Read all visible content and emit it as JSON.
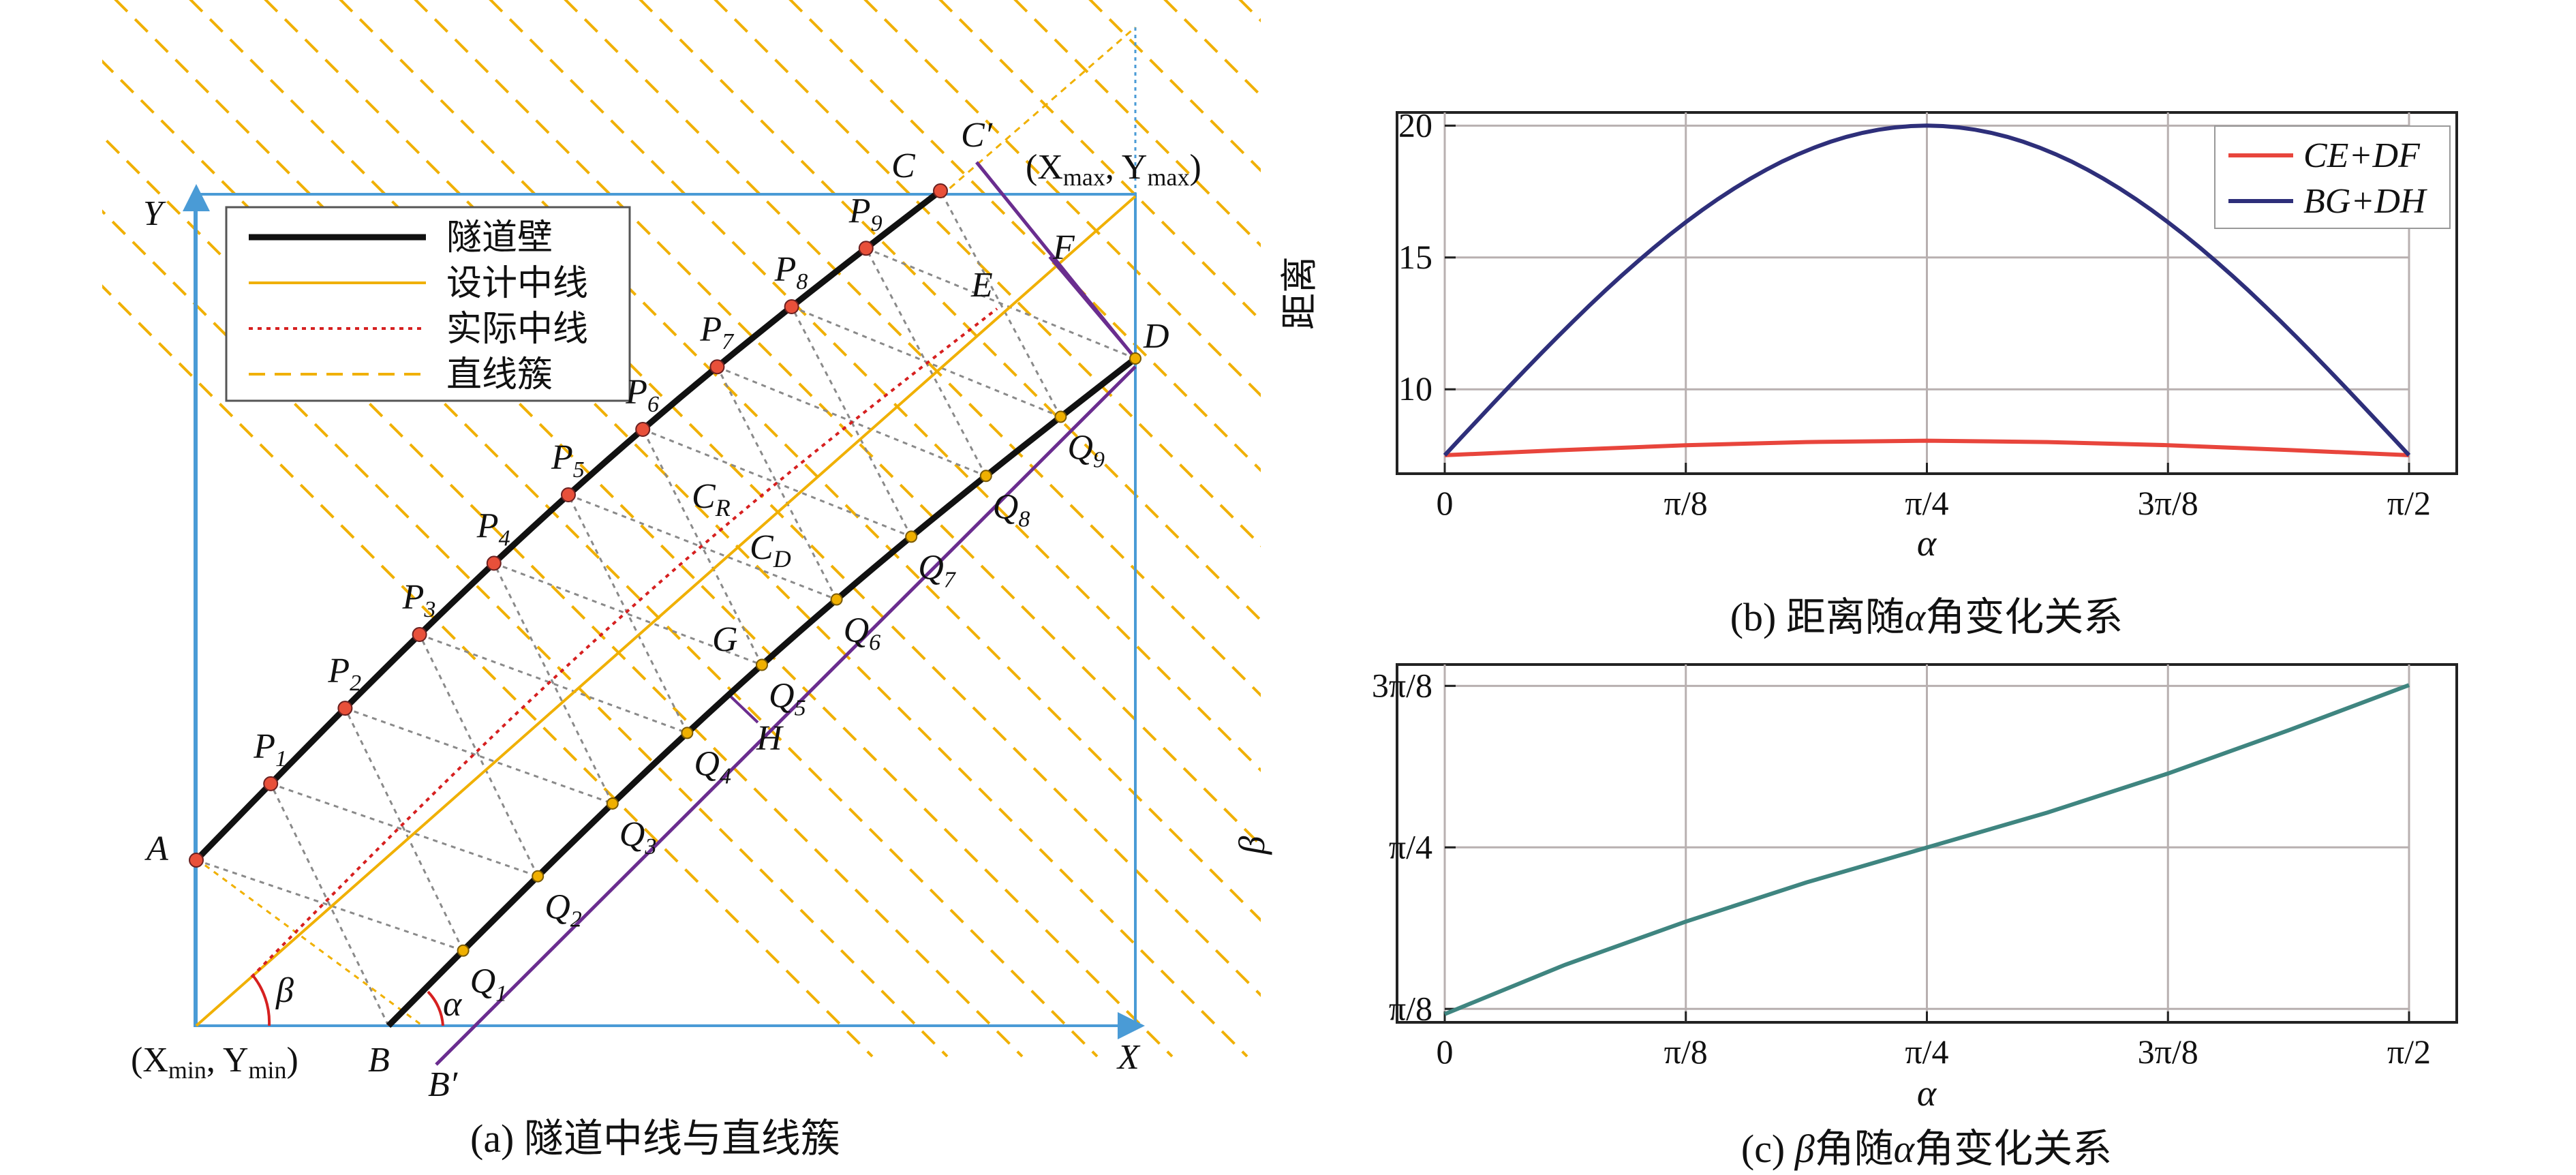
{
  "panel_a": {
    "caption": "(a) 隧道中线与直线簇",
    "legend": [
      {
        "label": "隧道壁",
        "color": "#111111",
        "style": "solid-thick"
      },
      {
        "label": "设计中线",
        "color": "#f0b000",
        "style": "solid"
      },
      {
        "label": "实际中线",
        "color": "#d62020",
        "style": "dotted"
      },
      {
        "label": "直线簇",
        "color": "#f0b000",
        "style": "dashed"
      }
    ],
    "points": {
      "A": "A",
      "B": "B",
      "B_prime": "B′",
      "C": "C",
      "C_prime": "C′",
      "D": "D",
      "E": "E",
      "F": "F",
      "G": "G",
      "H": "H",
      "CR_main": "C",
      "CR_sub": "R",
      "CD_main": "C",
      "CD_sub": "D",
      "P_main": "P",
      "Q_main": "Q",
      "P_subs": [
        "1",
        "2",
        "3",
        "4",
        "5",
        "6",
        "7",
        "8",
        "9"
      ],
      "Q_subs": [
        "1",
        "2",
        "3",
        "4",
        "5",
        "6",
        "7",
        "8",
        "9"
      ]
    },
    "axes": {
      "x_label": "X",
      "y_label": "Y",
      "min_label_open": "(X",
      "min_sub_x": "min",
      "min_comma": ", Y",
      "min_sub_y": "min",
      "min_close": ")",
      "max_label_open": "(X",
      "max_sub_x": "max",
      "max_comma": ", Y",
      "max_sub_y": "max",
      "max_close": ")"
    },
    "angles": {
      "beta": "β",
      "alpha": "α"
    },
    "colors": {
      "box": "#4a9bd6",
      "wall": "#111111",
      "design": "#f0b000",
      "actual": "#d62020",
      "family": "#f0b000",
      "purple": "#6a2d8f",
      "grid_dots": "#888888",
      "point_fill": "#e8503a"
    }
  },
  "panel_b": {
    "caption_prefix": "(b) 距离随",
    "caption_sym": "α",
    "caption_suffix": "角变化关系",
    "ylabel": "距离",
    "xlabel": "α",
    "x_ticks": [
      "0",
      "π/8",
      "π/4",
      "3π/8",
      "π/2"
    ],
    "y_ticks": [
      "10",
      "15",
      "20"
    ],
    "legend": [
      {
        "label": "CE+DF",
        "color": "#e8453c"
      },
      {
        "label": "BG+DH",
        "color": "#2e2f7a"
      }
    ]
  },
  "panel_c": {
    "caption_prefix": "(c) ",
    "caption_sym1": "β",
    "caption_mid": "角随",
    "caption_sym2": "α",
    "caption_suffix": "角变化关系",
    "ylabel": "β",
    "xlabel": "α",
    "x_ticks": [
      "0",
      "π/8",
      "π/4",
      "3π/8",
      "π/2"
    ],
    "y_ticks": [
      "π/8",
      "π/4",
      "3π/8"
    ],
    "line_color": "#3f8580"
  },
  "chart_data": [
    {
      "type": "line",
      "xlabel": "α",
      "ylabel": "距离",
      "xlim": [
        0,
        1.5708
      ],
      "ylim": [
        6.8,
        20.5
      ],
      "grid": true,
      "legend_position": "top-right",
      "x": [
        0,
        0.1963,
        0.3927,
        0.589,
        0.7854,
        0.9817,
        1.1781,
        1.3744,
        1.5708
      ],
      "series": [
        {
          "name": "CE+DF",
          "values": [
            7.5,
            7.7,
            7.88,
            8.0,
            8.05,
            8.0,
            7.88,
            7.7,
            7.5
          ]
        },
        {
          "name": "BG+DH",
          "values": [
            7.5,
            12.6,
            16.6,
            19.1,
            20.0,
            19.1,
            16.6,
            12.6,
            7.5
          ]
        }
      ]
    },
    {
      "type": "line",
      "xlabel": "α",
      "ylabel": "β",
      "xlim": [
        0,
        1.5708
      ],
      "ylim": [
        0.36,
        1.23
      ],
      "grid": true,
      "x": [
        0,
        0.1963,
        0.3927,
        0.589,
        0.7854,
        0.9817,
        1.1781,
        1.3744,
        1.5708
      ],
      "series": [
        {
          "name": "",
          "values": [
            0.38,
            0.5,
            0.605,
            0.7,
            0.785,
            0.87,
            0.965,
            1.07,
            1.18
          ]
        }
      ]
    }
  ]
}
